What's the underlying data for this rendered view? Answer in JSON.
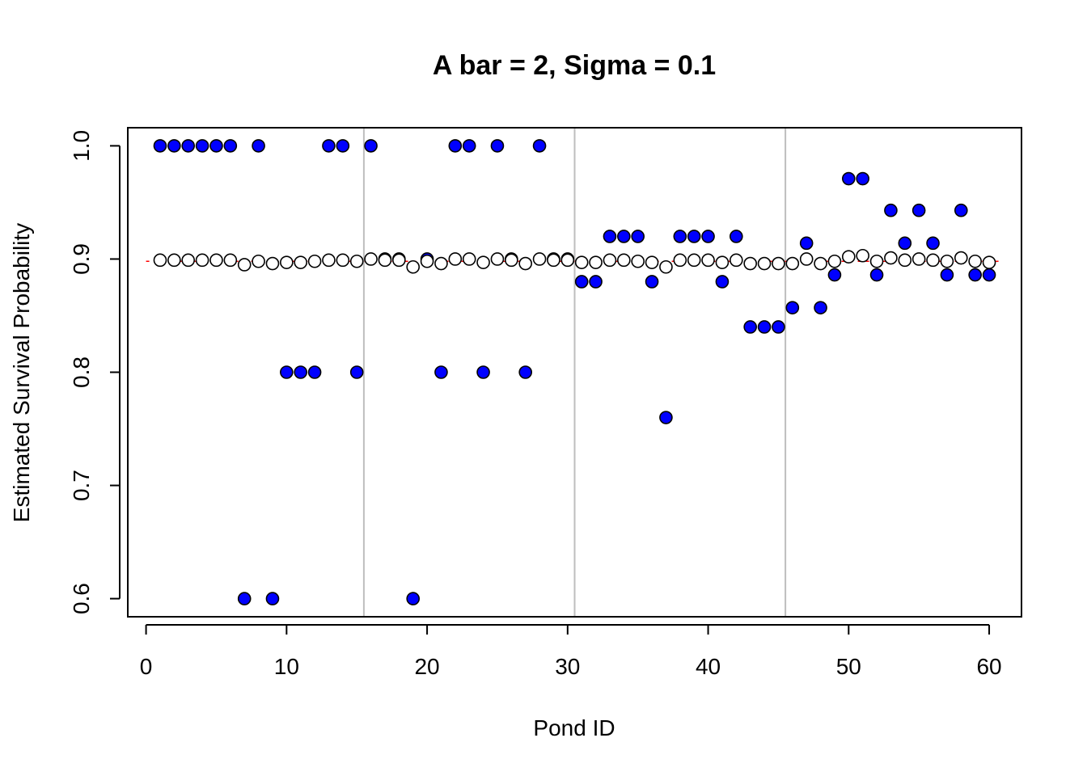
{
  "chart_data": {
    "type": "scatter",
    "title": "A bar = 2, Sigma = 0.1",
    "xlabel": "Pond ID",
    "ylabel": "Estimated Survival Probability",
    "xlim": [
      -1.3,
      62.3
    ],
    "ylim": [
      0.584,
      1.016
    ],
    "x_ticks": [
      0,
      10,
      20,
      30,
      40,
      50,
      60
    ],
    "x_tick_labels": [
      "0",
      "10",
      "20",
      "30",
      "40",
      "50",
      "60"
    ],
    "y_ticks": [
      0.6,
      0.7,
      0.8,
      0.9,
      1.0
    ],
    "y_tick_labels": [
      "0.6",
      "0.7",
      "0.8",
      "0.9",
      "1.0"
    ],
    "vertical_lines": [
      15.5,
      30.5,
      45.5
    ],
    "reference_line": {
      "y": 0.898,
      "color": "#ff0000",
      "style": "dashed"
    },
    "colors": {
      "observed_fill": "#0000ff",
      "estimate_fill": "#ffffff",
      "stroke": "#000000",
      "vline": "#bebebe"
    },
    "series": [
      {
        "marker": "filled-circle",
        "x": [
          1,
          2,
          3,
          4,
          5,
          6,
          7,
          8,
          9,
          10,
          11,
          12,
          13,
          14,
          15,
          16,
          17,
          18,
          19,
          20,
          21,
          22,
          23,
          24,
          25,
          26,
          27,
          28,
          29,
          30,
          31,
          32,
          33,
          34,
          35,
          36,
          37,
          38,
          39,
          40,
          41,
          42,
          43,
          44,
          45,
          46,
          47,
          48,
          49,
          50,
          51,
          52,
          53,
          54,
          55,
          56,
          57,
          58,
          59,
          60
        ],
        "values": [
          1.0,
          1.0,
          1.0,
          1.0,
          1.0,
          1.0,
          0.6,
          1.0,
          0.6,
          0.8,
          0.8,
          0.8,
          1.0,
          1.0,
          0.8,
          1.0,
          0.9,
          0.9,
          0.6,
          0.9,
          0.8,
          1.0,
          1.0,
          0.8,
          1.0,
          0.9,
          0.8,
          1.0,
          0.9,
          0.9,
          0.88,
          0.88,
          0.92,
          0.92,
          0.92,
          0.88,
          0.76,
          0.92,
          0.92,
          0.92,
          0.88,
          0.92,
          0.84,
          0.84,
          0.84,
          0.857,
          0.914,
          0.857,
          0.886,
          0.971,
          0.971,
          0.886,
          0.943,
          0.914,
          0.943,
          0.914,
          0.886,
          0.943,
          0.886,
          0.886
        ]
      },
      {
        "marker": "open-circle",
        "x": [
          1,
          2,
          3,
          4,
          5,
          6,
          7,
          8,
          9,
          10,
          11,
          12,
          13,
          14,
          15,
          16,
          17,
          18,
          19,
          20,
          21,
          22,
          23,
          24,
          25,
          26,
          27,
          28,
          29,
          30,
          31,
          32,
          33,
          34,
          35,
          36,
          37,
          38,
          39,
          40,
          41,
          42,
          43,
          44,
          45,
          46,
          47,
          48,
          49,
          50,
          51,
          52,
          53,
          54,
          55,
          56,
          57,
          58,
          59,
          60
        ],
        "values": [
          0.899,
          0.899,
          0.899,
          0.899,
          0.899,
          0.899,
          0.895,
          0.898,
          0.896,
          0.897,
          0.897,
          0.898,
          0.899,
          0.899,
          0.898,
          0.9,
          0.899,
          0.899,
          0.893,
          0.898,
          0.896,
          0.9,
          0.9,
          0.897,
          0.9,
          0.899,
          0.896,
          0.9,
          0.899,
          0.899,
          0.897,
          0.897,
          0.899,
          0.899,
          0.898,
          0.897,
          0.893,
          0.899,
          0.899,
          0.899,
          0.897,
          0.899,
          0.896,
          0.896,
          0.896,
          0.896,
          0.9,
          0.896,
          0.898,
          0.902,
          0.903,
          0.898,
          0.901,
          0.899,
          0.9,
          0.899,
          0.898,
          0.901,
          0.898,
          0.897
        ]
      }
    ]
  }
}
